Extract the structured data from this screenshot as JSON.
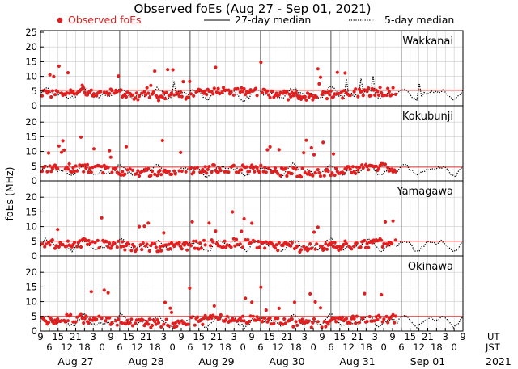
{
  "chart_data": {
    "type": "scatter",
    "title": "Observed foEs (Aug 27 - Sep 01, 2021)",
    "ylabel": "foEs (MHz)",
    "ylim": [
      0,
      25
    ],
    "y_ticks": [
      0,
      5,
      10,
      15,
      20,
      25
    ],
    "y_ticks_lower": [
      0,
      5,
      10,
      15,
      20
    ],
    "legend": {
      "observed": "Observed foEs",
      "median27": "27-day median",
      "median5": "5-day median"
    },
    "x_tick_labels": [
      "9",
      "6",
      "15",
      "12",
      "21",
      "18",
      "3",
      "0",
      "9",
      "6",
      "15",
      "12",
      "21",
      "18",
      "3",
      "0",
      "9",
      "6",
      "15",
      "12",
      "21",
      "18",
      "3",
      "0",
      "9",
      "6",
      "15",
      "12",
      "21",
      "18",
      "3",
      "0",
      "9",
      "6",
      "15",
      "12",
      "21",
      "18",
      "3",
      "0",
      "9",
      "6",
      "15",
      "12",
      "21",
      "18",
      "3",
      "0",
      "9"
    ],
    "time_labels": {
      "ut": "UT",
      "jst": "JST"
    },
    "days": [
      "Aug 27",
      "Aug 28",
      "Aug 29",
      "Aug 30",
      "Aug 31",
      "Sep 01"
    ],
    "year": "2021",
    "colors": {
      "observed": "#e02020",
      "median27": "#e03030",
      "median5": "#000000",
      "grid": "#cccccc"
    },
    "panels": [
      {
        "station": "Wakkanai",
        "median27": 5.3,
        "base": 4.0,
        "seed": 11
      },
      {
        "station": "Kokubunji",
        "median27": 4.7,
        "base": 3.6,
        "seed": 23
      },
      {
        "station": "Yamagawa",
        "median27": 5.0,
        "base": 3.6,
        "seed": 37
      },
      {
        "station": "Okinawa",
        "median27": 5.0,
        "base": 3.4,
        "seed": 51
      }
    ]
  }
}
